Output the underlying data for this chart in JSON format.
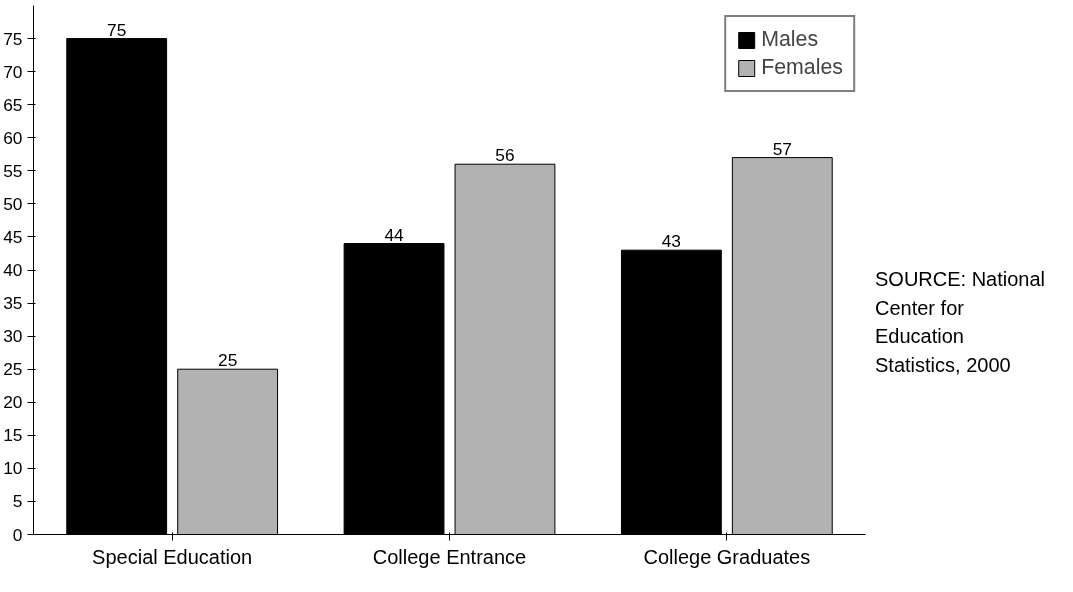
{
  "chart_data": {
    "type": "bar",
    "categories": [
      "Special Education",
      "College Entrance",
      "College Graduates"
    ],
    "series": [
      {
        "name": "Males",
        "color": "#000000",
        "values": [
          75,
          44,
          43
        ]
      },
      {
        "name": "Females",
        "color": "#b2b2b2",
        "values": [
          25,
          56,
          57
        ]
      }
    ],
    "ylim": [
      0,
      80
    ],
    "yticks": [
      0,
      5,
      10,
      15,
      20,
      25,
      30,
      35,
      40,
      45,
      50,
      55,
      60,
      65,
      70,
      75
    ],
    "data_labels": true,
    "grid": false,
    "legend": "top right",
    "annotations": [
      "SOURCE: National Center for Education Statistics, 2000"
    ]
  }
}
